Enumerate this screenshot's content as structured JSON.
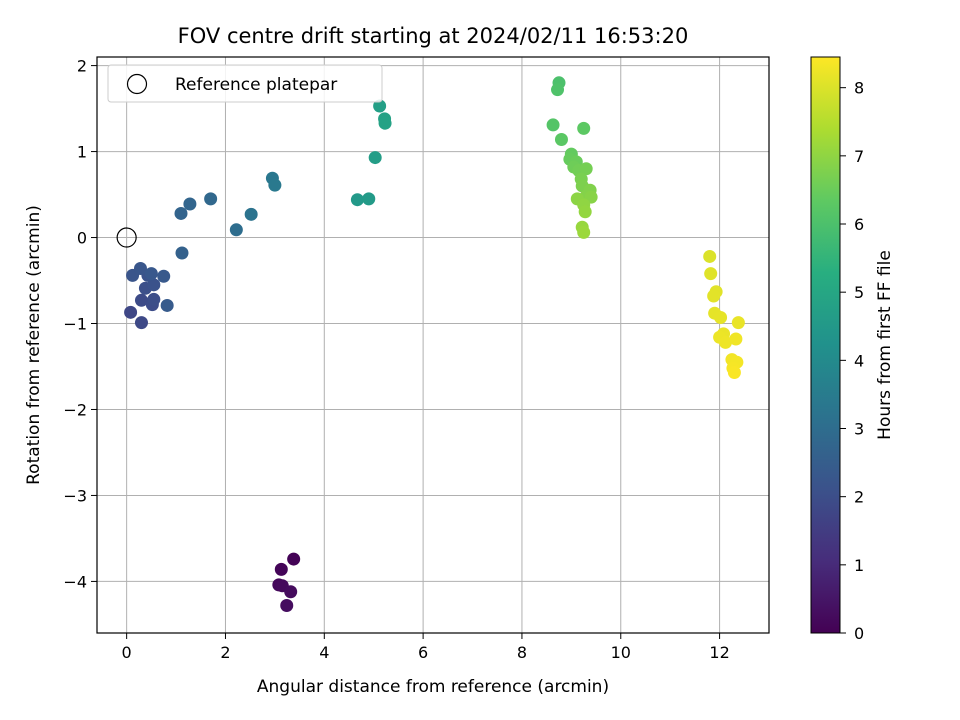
{
  "chart_data": {
    "type": "scatter",
    "title": "FOV centre drift starting at 2024/02/11 16:53:20",
    "xlabel": "Angular distance from reference (arcmin)",
    "ylabel": "Rotation from reference (arcmin)",
    "xlim": [
      -0.6,
      13.0
    ],
    "ylim": [
      -4.6,
      2.1
    ],
    "x_ticks": [
      0,
      2,
      4,
      6,
      8,
      10,
      12
    ],
    "x_tick_labels": [
      "0",
      "2",
      "4",
      "6",
      "8",
      "10",
      "12"
    ],
    "y_ticks": [
      -4,
      -3,
      -2,
      -1,
      0,
      1,
      2
    ],
    "y_tick_labels": [
      "−4",
      "−3",
      "−2",
      "−1",
      "0",
      "1",
      "2"
    ],
    "grid": true,
    "legend": {
      "location": "top-left",
      "entries": [
        {
          "label": "Reference platepar",
          "marker": "open-circle",
          "x": 0,
          "y": 0
        }
      ]
    },
    "colorbar": {
      "label": "Hours from first FF file",
      "colormap": "viridis",
      "range": [
        0,
        8.45
      ],
      "ticks": [
        0,
        1,
        2,
        3,
        4,
        5,
        6,
        7,
        8
      ],
      "tick_labels": [
        "0",
        "1",
        "2",
        "3",
        "4",
        "5",
        "6",
        "7",
        "8"
      ]
    },
    "points": [
      {
        "x": 3.38,
        "y": -3.74,
        "hours": 0.05
      },
      {
        "x": 3.13,
        "y": -3.86,
        "hours": 0.1
      },
      {
        "x": 3.08,
        "y": -4.04,
        "hours": 0.15
      },
      {
        "x": 3.15,
        "y": -4.05,
        "hours": 0.2
      },
      {
        "x": 3.32,
        "y": -4.12,
        "hours": 0.25
      },
      {
        "x": 3.24,
        "y": -4.28,
        "hours": 0.3
      },
      {
        "x": 0.08,
        "y": -0.87,
        "hours": 1.8
      },
      {
        "x": 0.3,
        "y": -0.99,
        "hours": 1.85
      },
      {
        "x": 0.3,
        "y": -0.73,
        "hours": 1.9
      },
      {
        "x": 0.52,
        "y": -0.78,
        "hours": 1.95
      },
      {
        "x": 0.55,
        "y": -0.72,
        "hours": 2.0
      },
      {
        "x": 0.38,
        "y": -0.59,
        "hours": 2.05
      },
      {
        "x": 0.55,
        "y": -0.55,
        "hours": 2.1
      },
      {
        "x": 0.43,
        "y": -0.44,
        "hours": 2.15
      },
      {
        "x": 0.12,
        "y": -0.44,
        "hours": 2.2
      },
      {
        "x": 0.28,
        "y": -0.36,
        "hours": 2.25
      },
      {
        "x": 0.5,
        "y": -0.42,
        "hours": 2.3
      },
      {
        "x": 0.75,
        "y": -0.45,
        "hours": 2.35
      },
      {
        "x": 0.82,
        "y": -0.79,
        "hours": 2.4
      },
      {
        "x": 1.12,
        "y": -0.18,
        "hours": 2.6
      },
      {
        "x": 1.1,
        "y": 0.28,
        "hours": 2.7
      },
      {
        "x": 1.28,
        "y": 0.39,
        "hours": 2.75
      },
      {
        "x": 1.7,
        "y": 0.45,
        "hours": 2.85
      },
      {
        "x": 2.22,
        "y": 0.09,
        "hours": 3.0
      },
      {
        "x": 2.52,
        "y": 0.27,
        "hours": 3.2
      },
      {
        "x": 2.95,
        "y": 0.69,
        "hours": 3.35
      },
      {
        "x": 3.0,
        "y": 0.61,
        "hours": 3.4
      },
      {
        "x": 4.67,
        "y": 0.44,
        "hours": 4.5
      },
      {
        "x": 4.9,
        "y": 0.45,
        "hours": 4.55
      },
      {
        "x": 5.03,
        "y": 0.93,
        "hours": 4.65
      },
      {
        "x": 5.12,
        "y": 1.53,
        "hours": 4.75
      },
      {
        "x": 5.22,
        "y": 1.38,
        "hours": 4.8
      },
      {
        "x": 5.23,
        "y": 1.33,
        "hours": 4.85
      },
      {
        "x": 8.75,
        "y": 1.8,
        "hours": 6.0
      },
      {
        "x": 8.72,
        "y": 1.72,
        "hours": 6.05
      },
      {
        "x": 8.63,
        "y": 1.31,
        "hours": 6.15
      },
      {
        "x": 8.8,
        "y": 1.14,
        "hours": 6.25
      },
      {
        "x": 9.25,
        "y": 1.27,
        "hours": 6.3
      },
      {
        "x": 9.0,
        "y": 0.97,
        "hours": 6.4
      },
      {
        "x": 8.97,
        "y": 0.91,
        "hours": 6.45
      },
      {
        "x": 9.1,
        "y": 0.88,
        "hours": 6.5
      },
      {
        "x": 9.05,
        "y": 0.82,
        "hours": 6.55
      },
      {
        "x": 9.15,
        "y": 0.78,
        "hours": 6.6
      },
      {
        "x": 9.3,
        "y": 0.8,
        "hours": 6.65
      },
      {
        "x": 9.2,
        "y": 0.68,
        "hours": 6.7
      },
      {
        "x": 9.22,
        "y": 0.6,
        "hours": 6.75
      },
      {
        "x": 9.38,
        "y": 0.55,
        "hours": 6.8
      },
      {
        "x": 9.3,
        "y": 0.48,
        "hours": 6.85
      },
      {
        "x": 9.4,
        "y": 0.47,
        "hours": 6.9
      },
      {
        "x": 9.12,
        "y": 0.45,
        "hours": 6.95
      },
      {
        "x": 9.25,
        "y": 0.38,
        "hours": 7.0
      },
      {
        "x": 9.28,
        "y": 0.3,
        "hours": 7.05
      },
      {
        "x": 9.22,
        "y": 0.12,
        "hours": 7.1
      },
      {
        "x": 9.25,
        "y": 0.06,
        "hours": 7.15
      },
      {
        "x": 11.8,
        "y": -0.22,
        "hours": 8.0
      },
      {
        "x": 11.82,
        "y": -0.42,
        "hours": 8.05
      },
      {
        "x": 11.93,
        "y": -0.63,
        "hours": 8.08
      },
      {
        "x": 11.88,
        "y": -0.68,
        "hours": 8.1
      },
      {
        "x": 11.9,
        "y": -0.88,
        "hours": 8.13
      },
      {
        "x": 12.02,
        "y": -0.93,
        "hours": 8.15
      },
      {
        "x": 12.38,
        "y": -0.99,
        "hours": 8.18
      },
      {
        "x": 12.08,
        "y": -1.12,
        "hours": 8.2
      },
      {
        "x": 12.0,
        "y": -1.16,
        "hours": 8.23
      },
      {
        "x": 12.12,
        "y": -1.22,
        "hours": 8.25
      },
      {
        "x": 12.33,
        "y": -1.18,
        "hours": 8.28
      },
      {
        "x": 12.25,
        "y": -1.42,
        "hours": 8.3
      },
      {
        "x": 12.35,
        "y": -1.45,
        "hours": 8.33
      },
      {
        "x": 12.27,
        "y": -1.52,
        "hours": 8.36
      },
      {
        "x": 12.3,
        "y": -1.57,
        "hours": 8.4
      }
    ]
  }
}
